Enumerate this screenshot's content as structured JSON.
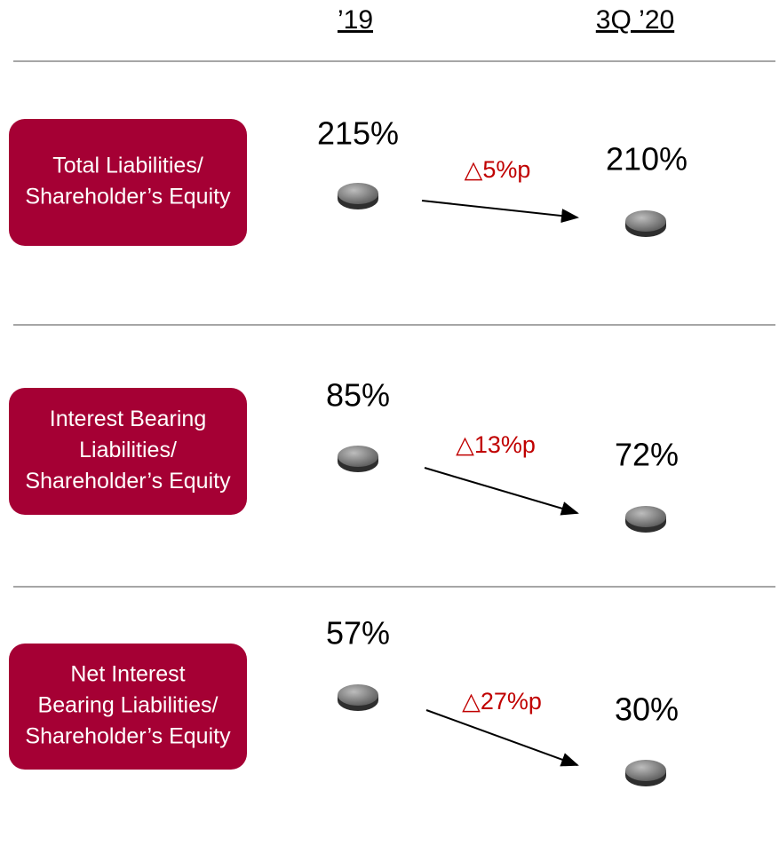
{
  "header": {
    "col1": "’19",
    "col2": "3Q ’20"
  },
  "rows": [
    {
      "label": [
        "Total Liabilities/",
        "Shareholder’s Equity"
      ],
      "value_19": "215%",
      "value_3q20": "210%",
      "change": "△5%p"
    },
    {
      "label": [
        "Interest Bearing",
        "Liabilities/",
        "Shareholder’s Equity"
      ],
      "value_19": "85%",
      "value_3q20": "72%",
      "change": "△13%p"
    },
    {
      "label": [
        "Net Interest",
        "Bearing Liabilities/",
        "Shareholder’s Equity"
      ],
      "value_19": "57%",
      "value_3q20": "30%",
      "change": "△27%p"
    }
  ]
}
